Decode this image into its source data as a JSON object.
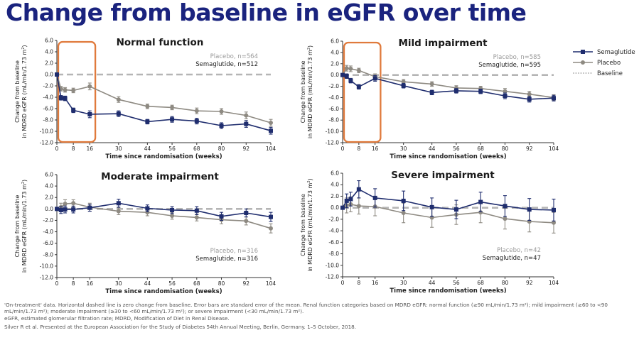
{
  "title": "Change from baseline in eGFR over time",
  "legend": {
    "entries": [
      {
        "label": "Semaglutide",
        "color": "#1f2d6e",
        "marker": "square"
      },
      {
        "label": "Placebo",
        "color": "#8e8a82",
        "marker": "circle"
      },
      {
        "label": "Baseline",
        "color": "#b5b5b5",
        "marker": "dashed-line"
      }
    ]
  },
  "footnotes": {
    "text": "'On-treatment' data. Horizontal dashed line is zero change from baseline. Error bars are standard error of the mean. Renal function categories based on MDRD eGFR: normal function (≥90 mL/min/1.73 m²); mild impairment (≥60 to <90 mL/min/1.73 m²); moderate impairment (≥30 to <60 mL/min/1.73 m²); or severe impairment (<30 mL/min/1.73 m²).",
    "abbrev": "eGFR, estimated glomerular filtration rate; MDRD, Modification of Diet in Renal Disease.",
    "citation": "Silver R et al. Presented at the European Association for the Study of Diabetes 54th Annual Meeting, Berlin, Germany. 1–5 October, 2018."
  },
  "colors": {
    "semaglutide": "#1f2d6e",
    "placebo": "#8e8a82",
    "baseline": "#b5b5b5",
    "highlight": "#e07a3c",
    "title": "#1a237e"
  },
  "chart_data": [
    {
      "type": "line",
      "title": "Normal function",
      "xlabel": "Time since randomisation (weeks)",
      "ylabel": "Change from baseline in MDRD eGFR (mL/min/1.73 m²)",
      "xticks": [
        0,
        8,
        16,
        30,
        44,
        56,
        68,
        80,
        92,
        104
      ],
      "yticks": [
        6,
        4,
        2,
        0,
        -2,
        -4,
        -6,
        -8,
        -10,
        -12
      ],
      "xlim": [
        0,
        104
      ],
      "ylim": [
        -12,
        6
      ],
      "highlight_box": {
        "x0": 0,
        "x1": 18
      },
      "legend_position": "top-right",
      "counts": [
        {
          "label": "Placebo, n=564",
          "series": "placebo"
        },
        {
          "label": "Semaglutide, n=512",
          "series": "semaglutide"
        }
      ],
      "series": [
        {
          "name": "Placebo",
          "points": [
            [
              0,
              0
            ],
            [
              2,
              -2.5
            ],
            [
              4,
              -2.7
            ],
            [
              8,
              -2.8
            ],
            [
              16,
              -2.1
            ],
            [
              30,
              -4.4
            ],
            [
              44,
              -5.6
            ],
            [
              56,
              -5.8
            ],
            [
              68,
              -6.4
            ],
            [
              80,
              -6.5
            ],
            [
              92,
              -7.2
            ],
            [
              104,
              -8.5
            ]
          ],
          "err": [
            0,
            0.4,
            0.4,
            0.4,
            0.6,
            0.5,
            0.4,
            0.4,
            0.5,
            0.5,
            0.6,
            0.6
          ]
        },
        {
          "name": "Semaglutide",
          "points": [
            [
              0,
              0
            ],
            [
              2,
              -4.1
            ],
            [
              4,
              -4.2
            ],
            [
              8,
              -6.3
            ],
            [
              16,
              -7.0
            ],
            [
              30,
              -6.9
            ],
            [
              44,
              -8.3
            ],
            [
              56,
              -7.9
            ],
            [
              68,
              -8.2
            ],
            [
              80,
              -9.0
            ],
            [
              92,
              -8.7
            ],
            [
              104,
              -9.9
            ]
          ],
          "err": [
            0,
            0.4,
            0.4,
            0.4,
            0.6,
            0.5,
            0.4,
            0.5,
            0.5,
            0.5,
            0.6,
            0.6
          ]
        }
      ]
    },
    {
      "type": "line",
      "title": "Mild impairment",
      "xlabel": "Time since randomisation (weeks)",
      "ylabel": "Change from baseline in MDRD eGFR (mL/min/1.73 m²)",
      "xticks": [
        0,
        8,
        16,
        30,
        44,
        56,
        68,
        80,
        92,
        104
      ],
      "yticks": [
        6,
        4,
        2,
        0,
        -2,
        -4,
        -6,
        -8,
        -10,
        -12
      ],
      "xlim": [
        0,
        104
      ],
      "ylim": [
        -12,
        6
      ],
      "highlight_box": {
        "x0": 0,
        "x1": 18
      },
      "legend_position": "top-right",
      "counts": [
        {
          "label": "Placebo, n=585",
          "series": "placebo"
        },
        {
          "label": "Semaglutide, n=595",
          "series": "semaglutide"
        }
      ],
      "series": [
        {
          "name": "Placebo",
          "points": [
            [
              0,
              0
            ],
            [
              2,
              1.2
            ],
            [
              4,
              1.1
            ],
            [
              8,
              0.8
            ],
            [
              16,
              -0.3
            ],
            [
              30,
              -1.2
            ],
            [
              44,
              -1.6
            ],
            [
              56,
              -2.3
            ],
            [
              68,
              -2.4
            ],
            [
              80,
              -2.9
            ],
            [
              92,
              -3.4
            ],
            [
              104,
              -4.0
            ]
          ],
          "err": [
            0,
            0.5,
            0.5,
            0.4,
            0.5,
            0.4,
            0.4,
            0.4,
            0.4,
            0.5,
            0.5,
            0.5
          ]
        },
        {
          "name": "Semaglutide",
          "points": [
            [
              0,
              0
            ],
            [
              2,
              -0.2
            ],
            [
              4,
              -1.0
            ],
            [
              8,
              -2.1
            ],
            [
              16,
              -0.6
            ],
            [
              30,
              -1.9
            ],
            [
              44,
              -3.1
            ],
            [
              56,
              -2.8
            ],
            [
              68,
              -2.9
            ],
            [
              80,
              -3.7
            ],
            [
              92,
              -4.3
            ],
            [
              104,
              -4.1
            ]
          ],
          "err": [
            0,
            0.4,
            0.4,
            0.4,
            0.5,
            0.4,
            0.4,
            0.4,
            0.4,
            0.5,
            0.5,
            0.5
          ]
        }
      ]
    },
    {
      "type": "line",
      "title": "Moderate impairment",
      "xlabel": "Time since randomisation (weeks)",
      "ylabel": "Change from baseline in MDRD eGFR (mL/min/1.73 m²)",
      "xticks": [
        0,
        8,
        16,
        30,
        44,
        56,
        68,
        80,
        92,
        104
      ],
      "yticks": [
        6,
        4,
        2,
        0,
        -2,
        -4,
        -6,
        -8,
        -10,
        -12
      ],
      "xlim": [
        0,
        104
      ],
      "ylim": [
        -12,
        6
      ],
      "legend_position": "bottom-right",
      "counts": [
        {
          "label": "Placebo, n=316",
          "series": "placebo"
        },
        {
          "label": "Semaglutide, n=316",
          "series": "semaglutide"
        }
      ],
      "series": [
        {
          "name": "Placebo",
          "points": [
            [
              0,
              0
            ],
            [
              2,
              0.3
            ],
            [
              4,
              0.9
            ],
            [
              8,
              1.0
            ],
            [
              16,
              0.3
            ],
            [
              30,
              -0.4
            ],
            [
              44,
              -0.6
            ],
            [
              56,
              -1.2
            ],
            [
              68,
              -1.5
            ],
            [
              80,
              -1.9
            ],
            [
              92,
              -2.1
            ],
            [
              104,
              -3.4
            ]
          ],
          "err": [
            0,
            0.7,
            0.7,
            0.6,
            0.7,
            0.6,
            0.6,
            0.6,
            0.6,
            0.7,
            0.7,
            0.8
          ]
        },
        {
          "name": "Semaglutide",
          "points": [
            [
              0,
              0
            ],
            [
              2,
              -0.2
            ],
            [
              4,
              -0.1
            ],
            [
              8,
              -0.1
            ],
            [
              16,
              0.2
            ],
            [
              30,
              1.0
            ],
            [
              44,
              0.1
            ],
            [
              56,
              -0.2
            ],
            [
              68,
              -0.3
            ],
            [
              80,
              -1.3
            ],
            [
              92,
              -0.7
            ],
            [
              104,
              -1.4
            ]
          ],
          "err": [
            0,
            0.6,
            0.6,
            0.6,
            0.6,
            0.7,
            0.6,
            0.6,
            0.7,
            0.7,
            0.7,
            0.8
          ]
        }
      ]
    },
    {
      "type": "line",
      "title": "Severe impairment",
      "xlabel": "Time since randomisation (weeks)",
      "ylabel": "Change from baseline in MDRD eGFR (mL/min/1.73 m²)",
      "xticks": [
        0,
        8,
        16,
        30,
        44,
        56,
        68,
        80,
        92,
        104
      ],
      "yticks": [
        6,
        4,
        2,
        0,
        -2,
        -4,
        -6,
        -8,
        -10,
        -12
      ],
      "xlim": [
        0,
        104
      ],
      "ylim": [
        -12,
        6
      ],
      "legend_position": "bottom-right",
      "counts": [
        {
          "label": "Placebo, n=42",
          "series": "placebo"
        },
        {
          "label": "Semaglutide, n=47",
          "series": "semaglutide"
        }
      ],
      "series": [
        {
          "name": "Placebo",
          "points": [
            [
              0,
              0
            ],
            [
              2,
              0.4
            ],
            [
              4,
              0.6
            ],
            [
              8,
              0.3
            ],
            [
              16,
              0.2
            ],
            [
              30,
              -0.9
            ],
            [
              44,
              -1.7
            ],
            [
              56,
              -1.2
            ],
            [
              68,
              -0.8
            ],
            [
              80,
              -1.9
            ],
            [
              92,
              -2.4
            ],
            [
              104,
              -2.6
            ]
          ],
          "err": [
            0,
            1.3,
            1.3,
            1.4,
            1.6,
            1.7,
            1.7,
            1.7,
            1.8,
            1.8,
            1.8,
            1.8
          ]
        },
        {
          "name": "Semaglutide",
          "points": [
            [
              0,
              0
            ],
            [
              2,
              1.2
            ],
            [
              4,
              1.5
            ],
            [
              8,
              3.2
            ],
            [
              16,
              1.7
            ],
            [
              30,
              1.2
            ],
            [
              44,
              0.1
            ],
            [
              56,
              -0.3
            ],
            [
              68,
              1.0
            ],
            [
              80,
              0.3
            ],
            [
              92,
              -0.3
            ],
            [
              104,
              -0.4
            ]
          ],
          "err": [
            0,
            1.2,
            1.2,
            1.5,
            1.6,
            1.7,
            1.6,
            1.6,
            1.7,
            1.8,
            1.9,
            1.9
          ]
        }
      ]
    }
  ]
}
